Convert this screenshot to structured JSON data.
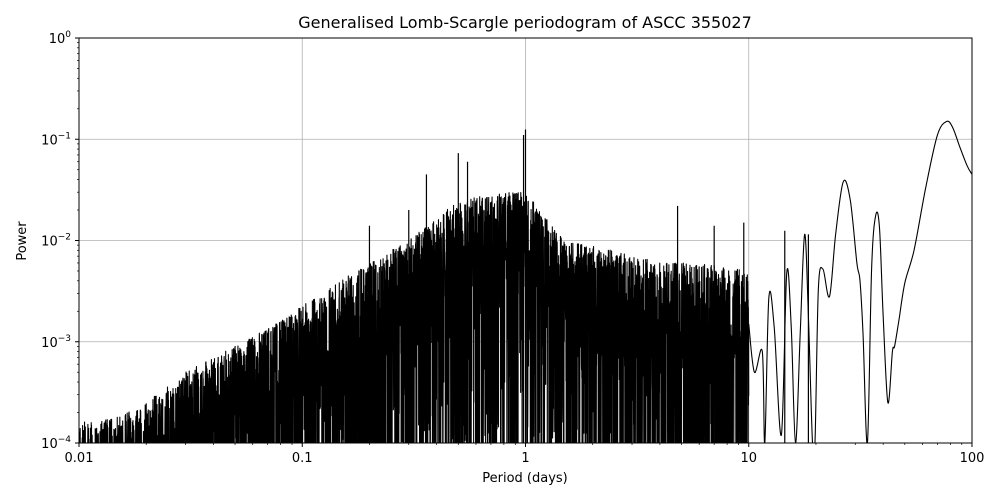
{
  "chart_data": {
    "type": "line",
    "title": "Generalised Lomb-Scargle periodogram of ASCC 355027",
    "xlabel": "Period (days)",
    "ylabel": "Power",
    "x_scale": "log",
    "y_scale": "log",
    "xlim": [
      0.01,
      100
    ],
    "ylim": [
      0.0001,
      1
    ],
    "grid": true,
    "x_ticks": [
      {
        "value": 0.01,
        "label": "0.01"
      },
      {
        "value": 0.1,
        "label": "0.1"
      },
      {
        "value": 1,
        "label": "1"
      },
      {
        "value": 10,
        "label": "10"
      },
      {
        "value": 100,
        "label": "100"
      }
    ],
    "y_ticks": [
      {
        "value": 0.0001,
        "base": "10",
        "exp": "−4"
      },
      {
        "value": 0.001,
        "base": "10",
        "exp": "−3"
      },
      {
        "value": 0.01,
        "base": "10",
        "exp": "−2"
      },
      {
        "value": 0.1,
        "base": "10",
        "exp": "−1"
      },
      {
        "value": 1,
        "base": "10",
        "exp": "0"
      }
    ],
    "color": "#000000",
    "noise_envelope": {
      "x": [
        0.01,
        0.015,
        0.02,
        0.03,
        0.05,
        0.08,
        0.12,
        0.2,
        0.3,
        0.5,
        0.8,
        1.0,
        1.5,
        2.5,
        4,
        6,
        10
      ],
      "peak_power": [
        0.00016,
        0.00018,
        0.00025,
        0.0005,
        0.0009,
        0.0016,
        0.003,
        0.006,
        0.01,
        0.025,
        0.03,
        0.03,
        0.01,
        0.008,
        0.006,
        0.006,
        0.005
      ]
    },
    "peaks": [
      {
        "x": 0.2,
        "y": 0.014
      },
      {
        "x": 0.3,
        "y": 0.02
      },
      {
        "x": 0.36,
        "y": 0.045
      },
      {
        "x": 0.5,
        "y": 0.073
      },
      {
        "x": 0.55,
        "y": 0.06
      },
      {
        "x": 0.98,
        "y": 0.11
      },
      {
        "x": 1.0,
        "y": 0.125
      },
      {
        "x": 4.8,
        "y": 0.022
      },
      {
        "x": 7.0,
        "y": 0.014
      },
      {
        "x": 9.5,
        "y": 0.015
      },
      {
        "x": 14.5,
        "y": 0.0125
      },
      {
        "x": 18.5,
        "y": 0.0115
      }
    ],
    "long_period_curve": {
      "x": [
        10,
        10.6,
        11.5,
        11.8,
        12.3,
        13,
        14,
        14.8,
        15.5,
        16.2,
        17,
        17.8,
        18.5,
        19.3,
        19.8,
        20.5,
        21.5,
        23,
        24.5,
        26.5,
        28.5,
        30.5,
        31.5,
        32.5,
        34,
        35.5,
        37,
        38.5,
        40,
        42,
        44,
        45,
        47,
        50,
        55,
        62,
        70,
        77,
        82,
        88,
        95,
        100
      ],
      "y": [
        0.0015,
        0.0005,
        0.0008,
        0.0001,
        0.0027,
        0.0014,
        0.00012,
        0.0048,
        0.0014,
        0.0001,
        0.0012,
        0.0115,
        0.0018,
        0.0001,
        0.0001,
        0.0033,
        0.0052,
        0.0028,
        0.0115,
        0.038,
        0.025,
        0.006,
        0.004,
        0.0012,
        0.0001,
        0.0052,
        0.0175,
        0.0135,
        0.0018,
        0.00025,
        0.0008,
        0.0009,
        0.0016,
        0.0038,
        0.008,
        0.033,
        0.11,
        0.15,
        0.13,
        0.085,
        0.055,
        0.045
      ]
    }
  }
}
